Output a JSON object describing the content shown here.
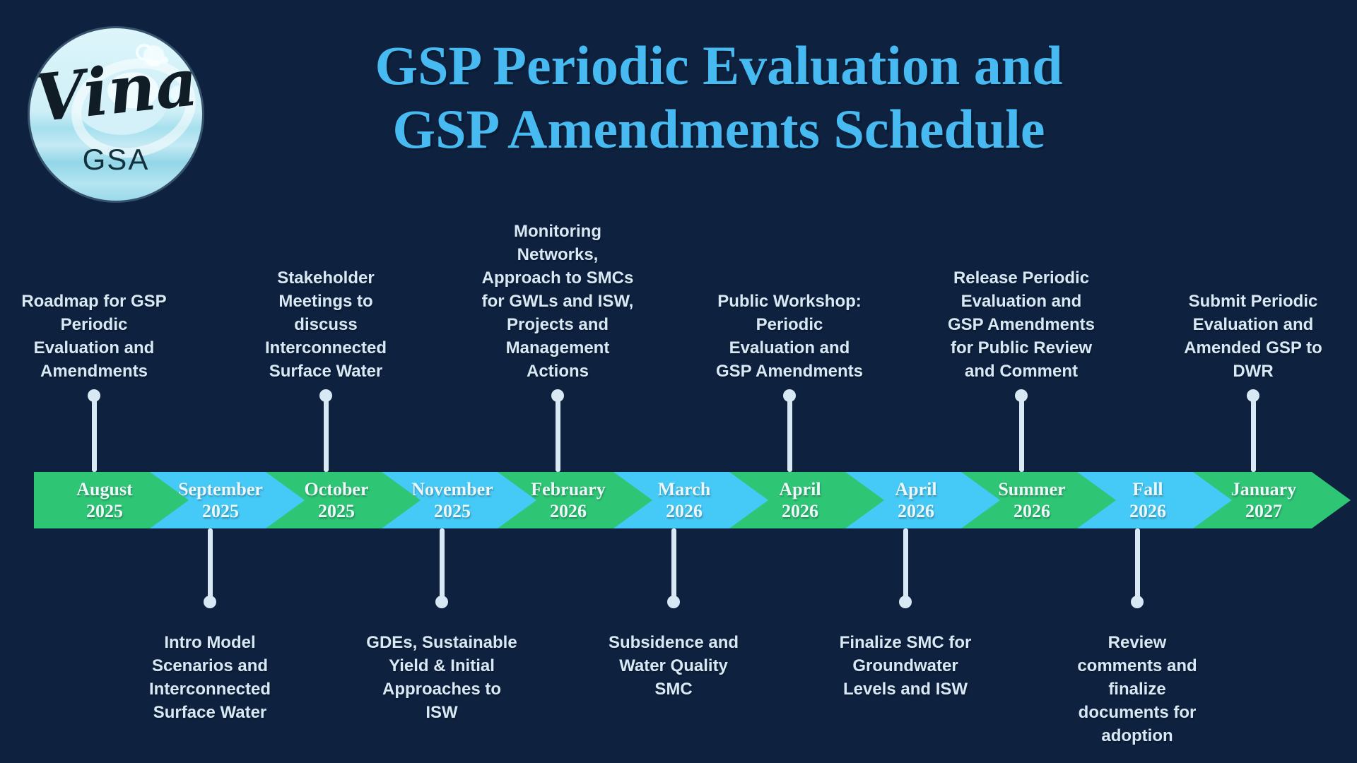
{
  "page": {
    "background_color": "#0E2240"
  },
  "logo": {
    "name": "Vina",
    "sub": "GSA"
  },
  "title": {
    "line1": "GSP Periodic Evaluation and",
    "line2": "GSP Amendments Schedule",
    "color": "#47BAF2"
  },
  "timeline": {
    "green": "#2EC575",
    "blue": "#45C9F6",
    "connector_color": "#D8E9F5",
    "segments": [
      {
        "month": "August",
        "year": "2025",
        "color": "green",
        "side": "top",
        "event_lines": [
          "Roadmap for GSP",
          "Periodic",
          "Evaluation and",
          "Amendments"
        ]
      },
      {
        "month": "September",
        "year": "2025",
        "color": "blue",
        "side": "bottom",
        "event_lines": [
          "Intro Model",
          "Scenarios and",
          "Interconnected",
          "Surface Water"
        ]
      },
      {
        "month": "October",
        "year": "2025",
        "color": "green",
        "side": "top",
        "event_lines": [
          "Stakeholder",
          "Meetings to",
          "discuss",
          "Interconnected",
          "Surface Water"
        ]
      },
      {
        "month": "November",
        "year": "2025",
        "color": "blue",
        "side": "bottom",
        "event_lines": [
          "GDEs, Sustainable",
          "Yield & Initial",
          "Approaches to",
          "ISW"
        ]
      },
      {
        "month": "February",
        "year": "2026",
        "color": "green",
        "side": "top",
        "event_lines": [
          "Monitoring",
          "Networks,",
          "Approach to SMCs",
          "for GWLs and ISW,",
          "Projects and",
          "Management",
          "Actions"
        ]
      },
      {
        "month": "March",
        "year": "2026",
        "color": "blue",
        "side": "bottom",
        "event_lines": [
          "Subsidence and",
          "Water Quality",
          "SMC"
        ]
      },
      {
        "month": "April",
        "year": "2026",
        "color": "green",
        "side": "top",
        "event_lines": [
          "Public Workshop:",
          "Periodic",
          "Evaluation and",
          "GSP Amendments"
        ]
      },
      {
        "month": "April",
        "year": "2026",
        "color": "blue",
        "side": "bottom",
        "event_lines": [
          "Finalize SMC for",
          "Groundwater",
          "Levels and ISW"
        ]
      },
      {
        "month": "Summer",
        "year": "2026",
        "color": "green",
        "side": "top",
        "event_lines": [
          "Release Periodic",
          "Evaluation and",
          "GSP Amendments",
          "for Public Review",
          "and Comment"
        ]
      },
      {
        "month": "Fall",
        "year": "2026",
        "color": "blue",
        "side": "bottom",
        "event_lines": [
          "Review",
          "comments and",
          "finalize",
          "documents for",
          "adoption"
        ]
      },
      {
        "month": "January",
        "year": "2027",
        "color": "green",
        "side": "top",
        "event_lines": [
          "Submit Periodic",
          "Evaluation and",
          "Amended GSP to",
          "DWR"
        ]
      }
    ]
  }
}
